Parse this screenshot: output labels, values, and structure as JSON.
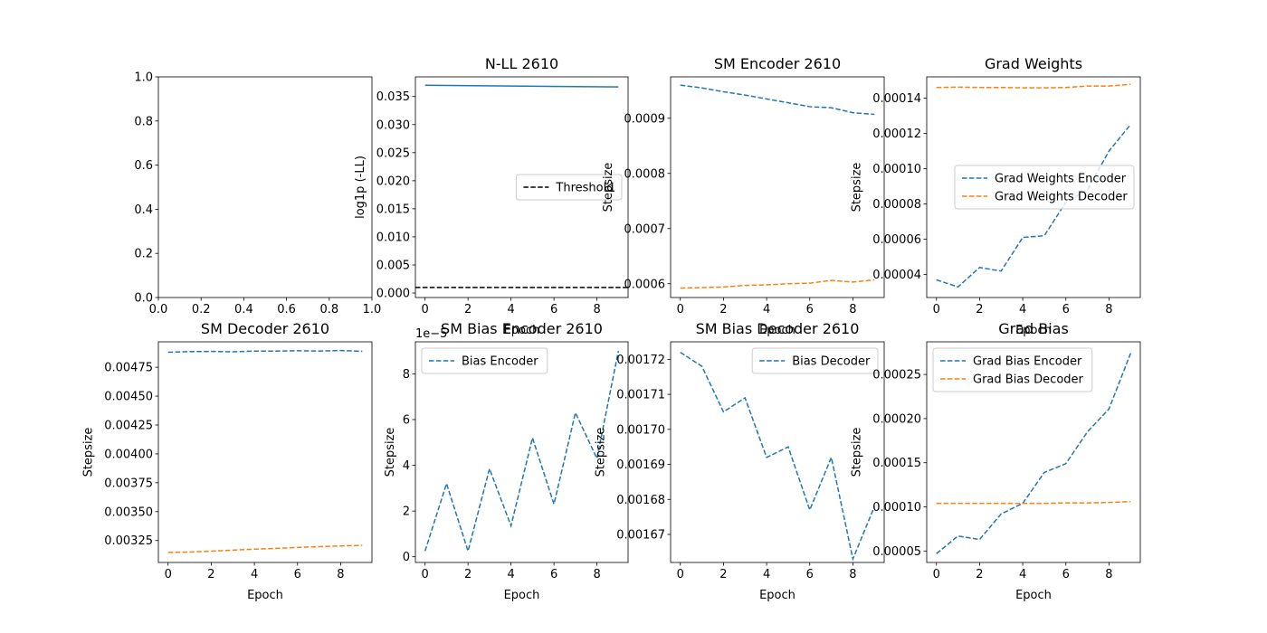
{
  "colors": {
    "blue": "#1f77b4",
    "orange": "#ff7f0e",
    "black": "#000000"
  },
  "chart_data": [
    {
      "id": "empty",
      "type": "line",
      "title": "",
      "xlabel": "",
      "ylabel": "",
      "xlim": [
        0,
        1
      ],
      "ylim": [
        0,
        1
      ],
      "xticks": [
        0.0,
        0.2,
        0.4,
        0.6,
        0.8,
        1.0
      ],
      "xtick_labels": [
        "0.0",
        "0.2",
        "0.4",
        "0.6",
        "0.8",
        "1.0"
      ],
      "yticks": [
        0.0,
        0.2,
        0.4,
        0.6,
        0.8,
        1.0
      ],
      "ytick_labels": [
        "0.0",
        "0.2",
        "0.4",
        "0.6",
        "0.8",
        "1.0"
      ],
      "series": []
    },
    {
      "id": "nll",
      "type": "line",
      "title": "N-LL 2610",
      "xlabel": "Epoch",
      "ylabel": "log1p (-LL)",
      "xlim": [
        -0.45,
        9.45
      ],
      "ylim": [
        -0.0008,
        0.0385
      ],
      "xticks": [
        0,
        2,
        4,
        6,
        8
      ],
      "xtick_labels": [
        "0",
        "2",
        "4",
        "6",
        "8"
      ],
      "yticks": [
        0.0,
        0.005,
        0.01,
        0.015,
        0.02,
        0.025,
        0.03,
        0.035
      ],
      "ytick_labels": [
        "0.000",
        "0.005",
        "0.010",
        "0.015",
        "0.020",
        "0.025",
        "0.030",
        "0.035"
      ],
      "legend": {
        "placement": "center-right",
        "entries": [
          "Threshold"
        ]
      },
      "series": [
        {
          "style": "solid",
          "color": "#1f77b4",
          "x": [
            0,
            9
          ],
          "values": [
            0.037,
            0.0367
          ]
        },
        {
          "name": "Threshold",
          "style": "dashed",
          "color": "#000000",
          "x": [
            -0.45,
            9.45
          ],
          "values": [
            0.001,
            0.001
          ]
        }
      ]
    },
    {
      "id": "sm_encoder",
      "type": "line",
      "title": "SM Encoder 2610",
      "xlabel": "Epoch",
      "ylabel": "Stepsize",
      "xlim": [
        -0.45,
        9.45
      ],
      "ylim": [
        0.000575,
        0.000975
      ],
      "xticks": [
        0,
        2,
        4,
        6,
        8
      ],
      "xtick_labels": [
        "0",
        "2",
        "4",
        "6",
        "8"
      ],
      "yticks": [
        0.0006,
        0.0007,
        0.0008,
        0.0009
      ],
      "ytick_labels": [
        "0.0006",
        "0.0007",
        "0.0008",
        "0.0009"
      ],
      "series": [
        {
          "style": "dashed",
          "color": "#1f77b4",
          "x": [
            0,
            1,
            2,
            3,
            4,
            5,
            6,
            7,
            8,
            9
          ],
          "values": [
            0.00096,
            0.000955,
            0.000948,
            0.000942,
            0.000935,
            0.000928,
            0.000921,
            0.000919,
            0.00091,
            0.000907
          ]
        },
        {
          "style": "dashed",
          "color": "#ff7f0e",
          "x": [
            0,
            1,
            2,
            3,
            4,
            5,
            6,
            7,
            8,
            9
          ],
          "values": [
            0.000592,
            0.000593,
            0.000594,
            0.000597,
            0.000598,
            0.0006,
            0.000601,
            0.000606,
            0.000603,
            0.000607
          ]
        }
      ]
    },
    {
      "id": "grad_weights",
      "type": "line",
      "title": "Grad Weights",
      "xlabel": "Epoch",
      "ylabel": "Stepsize",
      "xlim": [
        -0.45,
        9.45
      ],
      "ylim": [
        2.7e-05,
        0.000152
      ],
      "xticks": [
        0,
        2,
        4,
        6,
        8
      ],
      "xtick_labels": [
        "0",
        "2",
        "4",
        "6",
        "8"
      ],
      "yticks": [
        4e-05,
        6e-05,
        8e-05,
        0.0001,
        0.00012,
        0.00014
      ],
      "ytick_labels": [
        "0.00004",
        "0.00006",
        "0.00008",
        "0.00010",
        "0.00012",
        "0.00014"
      ],
      "legend": {
        "placement": "center-right",
        "entries": [
          "Grad Weights Encoder",
          "Grad Weights Decoder"
        ]
      },
      "series": [
        {
          "name": "Grad Weights Encoder",
          "style": "dashed",
          "color": "#1f77b4",
          "x": [
            0,
            1,
            2,
            3,
            4,
            5,
            6,
            7,
            8,
            9
          ],
          "values": [
            3.7e-05,
            3.3e-05,
            4.4e-05,
            4.2e-05,
            6.1e-05,
            6.2e-05,
            8.1e-05,
            8.8e-05,
            0.00011,
            0.000125
          ]
        },
        {
          "name": "Grad Weights Decoder",
          "style": "dashed",
          "color": "#ff7f0e",
          "x": [
            0,
            1,
            2,
            3,
            4,
            5,
            6,
            7,
            8,
            9
          ],
          "values": [
            0.000146,
            0.0001462,
            0.000146,
            0.000146,
            0.0001458,
            0.0001458,
            0.000146,
            0.0001468,
            0.0001468,
            0.0001478
          ]
        }
      ]
    },
    {
      "id": "sm_decoder",
      "type": "line",
      "title": "SM Decoder 2610",
      "xlabel": "Epoch",
      "ylabel": "Stepsize",
      "xlim": [
        -0.45,
        9.45
      ],
      "ylim": [
        0.00306,
        0.00497
      ],
      "xticks": [
        0,
        2,
        4,
        6,
        8
      ],
      "xtick_labels": [
        "0",
        "2",
        "4",
        "6",
        "8"
      ],
      "yticks": [
        0.00325,
        0.0035,
        0.00375,
        0.004,
        0.00425,
        0.0045,
        0.00475
      ],
      "ytick_labels": [
        "0.00325",
        "0.00350",
        "0.00375",
        "0.00400",
        "0.00425",
        "0.00450",
        "0.00475"
      ],
      "series": [
        {
          "style": "dashed",
          "color": "#1f77b4",
          "x": [
            0,
            1,
            2,
            3,
            4,
            5,
            6,
            7,
            8,
            9
          ],
          "values": [
            0.00488,
            0.004885,
            0.004887,
            0.004884,
            0.00489,
            0.00489,
            0.004893,
            0.00489,
            0.004895,
            0.004888
          ]
        },
        {
          "style": "dashed",
          "color": "#ff7f0e",
          "x": [
            0,
            1,
            2,
            3,
            4,
            5,
            6,
            7,
            8,
            9
          ],
          "values": [
            0.003147,
            0.00315,
            0.003158,
            0.003167,
            0.003175,
            0.003182,
            0.00319,
            0.003197,
            0.003203,
            0.003208
          ]
        }
      ]
    },
    {
      "id": "sm_bias_encoder",
      "type": "line",
      "title": "SM Bias Encoder 2610",
      "xlabel": "Epoch",
      "ylabel": "Stepsize",
      "offset_label": "1e−5",
      "xlim": [
        -0.45,
        9.45
      ],
      "ylim": [
        -0.25,
        9.4
      ],
      "xticks": [
        0,
        2,
        4,
        6,
        8
      ],
      "xtick_labels": [
        "0",
        "2",
        "4",
        "6",
        "8"
      ],
      "yticks": [
        0,
        2,
        4,
        6,
        8
      ],
      "ytick_labels": [
        "0",
        "2",
        "4",
        "6",
        "8"
      ],
      "legend": {
        "placement": "upper-left",
        "entries": [
          "Bias Encoder"
        ]
      },
      "series": [
        {
          "name": "Bias Encoder",
          "style": "dashed",
          "color": "#1f77b4",
          "x": [
            0,
            1,
            2,
            3,
            4,
            5,
            6,
            7,
            8,
            9
          ],
          "values": [
            0.25,
            3.2,
            0.25,
            3.85,
            1.35,
            5.2,
            2.3,
            6.3,
            4.3,
            9.0
          ]
        }
      ]
    },
    {
      "id": "sm_bias_decoder",
      "type": "line",
      "title": "SM Bias Decoder 2610",
      "xlabel": "Epoch",
      "ylabel": "Stepsize",
      "xlim": [
        -0.45,
        9.45
      ],
      "ylim": [
        0.001662,
        0.001725
      ],
      "xticks": [
        0,
        2,
        4,
        6,
        8
      ],
      "xtick_labels": [
        "0",
        "2",
        "4",
        "6",
        "8"
      ],
      "yticks": [
        0.00167,
        0.00168,
        0.00169,
        0.0017,
        0.00171,
        0.00172
      ],
      "ytick_labels": [
        "0.00167",
        "0.00168",
        "0.00169",
        "0.00170",
        "0.00171",
        "0.00172"
      ],
      "legend": {
        "placement": "upper-right",
        "entries": [
          "Bias Decoder"
        ]
      },
      "series": [
        {
          "name": "Bias Decoder",
          "style": "dashed",
          "color": "#1f77b4",
          "x": [
            0,
            1,
            2,
            3,
            4,
            5,
            6,
            7,
            8,
            9
          ],
          "values": [
            0.001722,
            0.001718,
            0.001705,
            0.001709,
            0.001692,
            0.001695,
            0.001677,
            0.001692,
            0.001663,
            0.001678
          ]
        }
      ]
    },
    {
      "id": "grad_bias",
      "type": "line",
      "title": "Grad Bias",
      "xlabel": "Epoch",
      "ylabel": "Stepsize",
      "xlim": [
        -0.45,
        9.45
      ],
      "ylim": [
        3.7e-05,
        0.000287
      ],
      "xticks": [
        0,
        2,
        4,
        6,
        8
      ],
      "xtick_labels": [
        "0",
        "2",
        "4",
        "6",
        "8"
      ],
      "yticks": [
        5e-05,
        0.0001,
        0.00015,
        0.0002,
        0.00025
      ],
      "ytick_labels": [
        "0.00005",
        "0.00010",
        "0.00015",
        "0.00020",
        "0.00025"
      ],
      "legend": {
        "placement": "upper-left",
        "entries": [
          "Grad Bias Encoder",
          "Grad Bias Decoder"
        ]
      },
      "series": [
        {
          "name": "Grad Bias Encoder",
          "style": "dashed",
          "color": "#1f77b4",
          "x": [
            0,
            1,
            2,
            3,
            4,
            5,
            6,
            7,
            8,
            9
          ],
          "values": [
            4.7e-05,
            6.7e-05,
            6.3e-05,
            9.2e-05,
            0.000104,
            0.000139,
            0.000149,
            0.000185,
            0.000211,
            0.000274
          ]
        },
        {
          "name": "Grad Bias Decoder",
          "style": "dashed",
          "color": "#ff7f0e",
          "x": [
            0,
            1,
            2,
            3,
            4,
            5,
            6,
            7,
            8,
            9
          ],
          "values": [
            0.000104,
            0.000104,
            0.000104,
            0.000104,
            0.000104,
            0.000104,
            0.0001045,
            0.0001045,
            0.000105,
            0.000106
          ]
        }
      ]
    }
  ]
}
